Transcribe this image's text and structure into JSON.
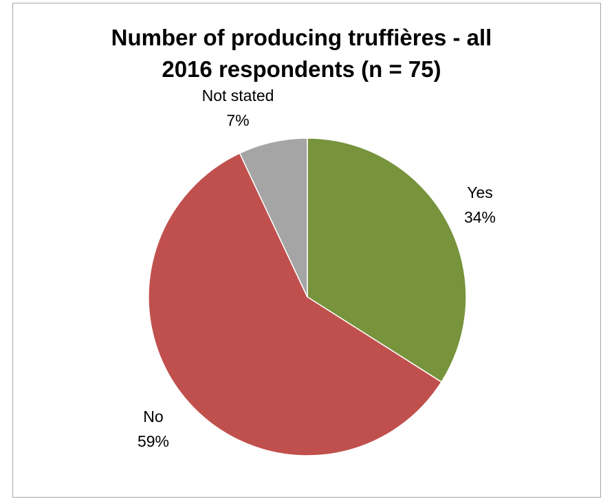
{
  "chart_data": {
    "type": "pie",
    "title_lines": [
      "Number of producing truffières - all",
      "2016 respondents (n = 75)"
    ],
    "slices": [
      {
        "label": "Yes",
        "value": 34,
        "percent_label": "34%",
        "color": "#77933c"
      },
      {
        "label": "No",
        "value": 59,
        "percent_label": "59%",
        "color": "#c0504d"
      },
      {
        "label": "Not stated",
        "value": 7,
        "percent_label": "7%",
        "color": "#a5a5a5"
      }
    ],
    "start_angle_deg": 0,
    "direction": "clockwise",
    "legend": "none"
  }
}
